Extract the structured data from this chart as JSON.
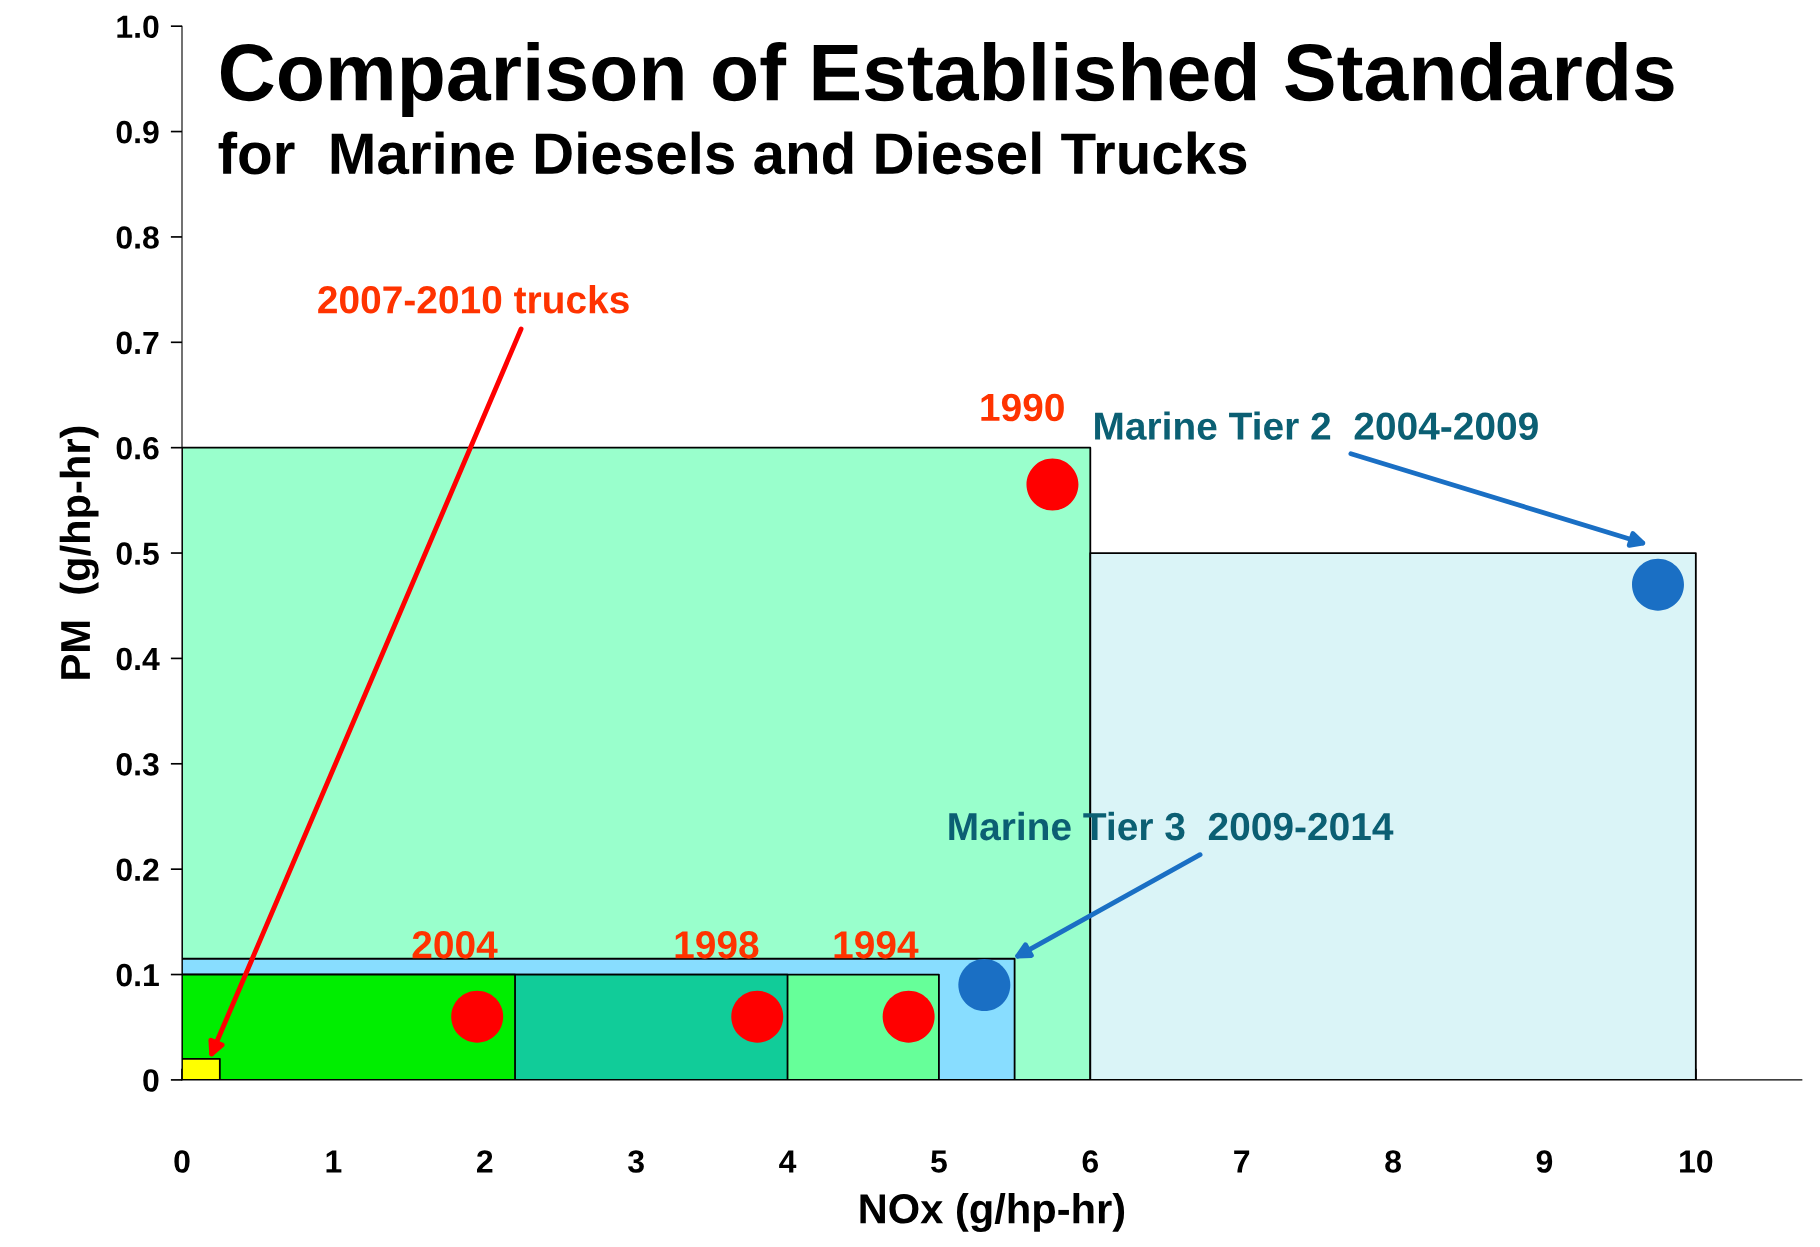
{
  "chart_data": {
    "type": "area",
    "title": "Comparison of Established Standards",
    "subtitle": "for  Marine Diesels and Diesel Trucks",
    "xlabel": "NOx (g/hp-hr)",
    "ylabel": "PM  (g/hp-hr)",
    "xlim": [
      0,
      10.7
    ],
    "ylim": [
      0,
      1.0
    ],
    "xticks": [
      0,
      1,
      2,
      3,
      4,
      5,
      6,
      7,
      8,
      9,
      10
    ],
    "yticks": [
      0,
      0.1,
      0.2,
      0.3,
      0.4,
      0.5,
      0.6,
      0.7,
      0.8,
      0.9,
      {
        "value": 1.0,
        "label": "1.0"
      }
    ],
    "grid": false,
    "series": [
      {
        "color": "#99ffcc",
        "x": [
          0,
          6
        ],
        "values": [
          0.6,
          0.6
        ]
      },
      {
        "color": "#daf4f7",
        "x": [
          6,
          10
        ],
        "values": [
          0.5,
          0.5
        ]
      },
      {
        "color": "#88ddff",
        "x": [
          0,
          5.5
        ],
        "values": [
          0.115,
          0.115
        ]
      },
      {
        "color": "#66ff99",
        "x": [
          0,
          5
        ],
        "values": [
          0.1,
          0.1
        ]
      },
      {
        "color": "#11cc99",
        "x": [
          0,
          4
        ],
        "values": [
          0.1,
          0.1
        ]
      },
      {
        "color": "#00ee00",
        "x": [
          0,
          2.2
        ],
        "values": [
          0.1,
          0.1
        ]
      },
      {
        "color": "#ffff00",
        "x": [
          0,
          0.25
        ],
        "values": [
          0.02,
          0.02
        ]
      },
      {
        "type": "scatter",
        "marker": "circle",
        "color": "#ff0000",
        "x": [
          5.75,
          1.95,
          3.8,
          4.8
        ],
        "values": [
          0.565,
          0.06,
          0.06,
          0.06
        ]
      },
      {
        "type": "scatter",
        "marker": "circle",
        "color": "#1a6fc4",
        "x": [
          5.3,
          9.75
        ],
        "values": [
          0.09,
          0.47
        ]
      }
    ],
    "annotations": [
      "2007-2010 trucks",
      {
        "text": "1990",
        "x": 5.75,
        "y": 0.565
      },
      "Marine Tier 2  2004-2009",
      "Marine Tier 3  2009-2014",
      {
        "text": "2004",
        "x": 1.95,
        "y": 0.06
      },
      {
        "text": "1998",
        "x": 3.8,
        "y": 0.06
      },
      {
        "text": "1994",
        "x": 4.8,
        "y": 0.06
      }
    ]
  }
}
